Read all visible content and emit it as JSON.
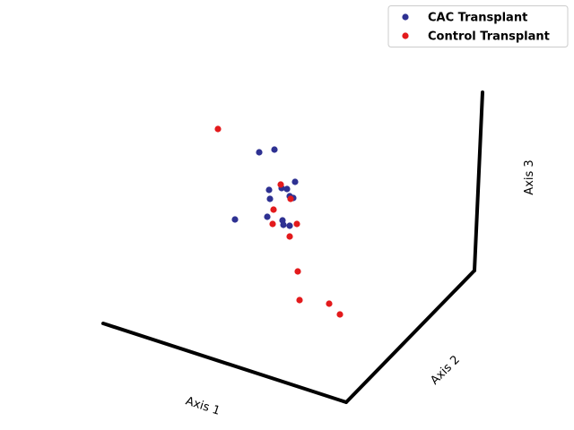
{
  "chart_data": {
    "type": "scatter",
    "projection": "3d",
    "grid": false,
    "legend_position": "top-right",
    "xlabel": "Axis 1",
    "ylabel": "Axis 2",
    "zlabel": "Axis 3",
    "series": [
      {
        "name": "CAC Transplant",
        "color": "#2e3192",
        "points": [
          [
            289,
            170
          ],
          [
            306,
            167
          ],
          [
            300,
            212
          ],
          [
            329,
            203
          ],
          [
            314,
            210
          ],
          [
            320,
            211
          ],
          [
            301,
            222
          ],
          [
            323,
            219
          ],
          [
            327,
            221
          ],
          [
            262,
            245
          ],
          [
            298,
            242
          ],
          [
            315,
            246
          ],
          [
            316,
            251
          ],
          [
            323,
            252
          ]
        ]
      },
      {
        "name": "Control Transplant",
        "color": "#e31a1c",
        "points": [
          [
            243,
            144
          ],
          [
            313,
            206
          ],
          [
            324,
            222
          ],
          [
            305,
            234
          ],
          [
            304,
            250
          ],
          [
            331,
            250
          ],
          [
            323,
            264
          ],
          [
            332,
            303
          ],
          [
            334,
            335
          ],
          [
            367,
            339
          ],
          [
            379,
            351
          ]
        ]
      }
    ]
  }
}
